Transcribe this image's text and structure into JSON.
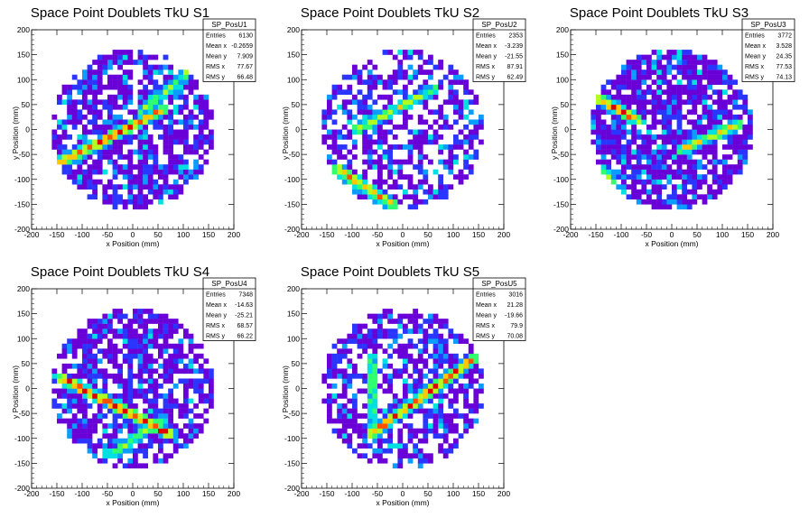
{
  "chart_data": [
    {
      "type": "heatmap",
      "title": "Space Point Doublets TkU S1",
      "xlabel": "x Position (mm)",
      "ylabel": "y Position (mm)",
      "xlim": [
        -200,
        200
      ],
      "ylim": [
        -200,
        200
      ],
      "ticks": [
        "-200",
        "-150",
        "-100",
        "-50",
        "0",
        "50",
        "100",
        "150",
        "200"
      ],
      "grid": false,
      "detector_radius": 160,
      "tracks": [
        {
          "from": [
            -150,
            -70
          ],
          "to": [
            60,
            40
          ],
          "intensity": 0.95
        },
        {
          "from": [
            20,
            40
          ],
          "to": [
            140,
            140
          ],
          "intensity": 0.5
        }
      ],
      "stats": {
        "name": "SP_PosU1",
        "rows": [
          {
            "label": "Entries",
            "value": "6130"
          },
          {
            "label": "Mean x",
            "value": "-0.2659"
          },
          {
            "label": "Mean y",
            "value": "7.909"
          },
          {
            "label": "RMS x",
            "value": "77.67"
          },
          {
            "label": "RMS y",
            "value": "66.48"
          }
        ]
      }
    },
    {
      "type": "heatmap",
      "title": "Space Point Doublets TkU S2",
      "xlabel": "x Position (mm)",
      "ylabel": "y Position (mm)",
      "xlim": [
        -200,
        200
      ],
      "ylim": [
        -200,
        200
      ],
      "ticks": [
        "-200",
        "-150",
        "-100",
        "-50",
        "0",
        "50",
        "100",
        "150",
        "200"
      ],
      "grid": false,
      "detector_radius": 160,
      "tracks": [
        {
          "from": [
            -130,
            -80
          ],
          "to": [
            -20,
            -150
          ],
          "intensity": 0.8
        },
        {
          "from": [
            -90,
            0
          ],
          "to": [
            60,
            80
          ],
          "intensity": 0.55
        }
      ],
      "stats": {
        "name": "SP_PosU2",
        "rows": [
          {
            "label": "Entries",
            "value": "2353"
          },
          {
            "label": "Mean x",
            "value": "-3.239"
          },
          {
            "label": "Mean y",
            "value": "-21.55"
          },
          {
            "label": "RMS x",
            "value": "87.91"
          },
          {
            "label": "RMS y",
            "value": "62.49"
          }
        ]
      }
    },
    {
      "type": "heatmap",
      "title": "Space Point Doublets TkU S3",
      "xlabel": "x Position (mm)",
      "ylabel": "y Position (mm)",
      "xlim": [
        -200,
        200
      ],
      "ylim": [
        -200,
        200
      ],
      "ticks": [
        "-200",
        "-150",
        "-100",
        "-50",
        "0",
        "50",
        "100",
        "150",
        "200"
      ],
      "grid": false,
      "detector_radius": 160,
      "tracks": [
        {
          "from": [
            -140,
            60
          ],
          "to": [
            -70,
            20
          ],
          "intensity": 0.9
        },
        {
          "from": [
            20,
            -40
          ],
          "to": [
            130,
            10
          ],
          "intensity": 0.7
        },
        {
          "from": [
            -140,
            -80
          ],
          "to": [
            -110,
            -120
          ],
          "intensity": 0.6
        }
      ],
      "stats": {
        "name": "SP_PosU3",
        "rows": [
          {
            "label": "Entries",
            "value": "3772"
          },
          {
            "label": "Mean x",
            "value": "3.528"
          },
          {
            "label": "Mean y",
            "value": "24.35"
          },
          {
            "label": "RMS x",
            "value": "77.53"
          },
          {
            "label": "RMS y",
            "value": "74.13"
          }
        ]
      }
    },
    {
      "type": "heatmap",
      "title": "Space Point Doublets TkU S4",
      "xlabel": "x Position (mm)",
      "ylabel": "y Position (mm)",
      "xlim": [
        -200,
        200
      ],
      "ylim": [
        -200,
        200
      ],
      "ticks": [
        "-200",
        "-150",
        "-100",
        "-50",
        "0",
        "50",
        "100",
        "150",
        "200"
      ],
      "grid": false,
      "detector_radius": 160,
      "tracks": [
        {
          "from": [
            -140,
            20
          ],
          "to": [
            70,
            -90
          ],
          "intensity": 1.0
        },
        {
          "from": [
            -40,
            -130
          ],
          "to": [
            60,
            -60
          ],
          "intensity": 0.55
        }
      ],
      "stats": {
        "name": "SP_PosU4",
        "rows": [
          {
            "label": "Entries",
            "value": "7348"
          },
          {
            "label": "Mean x",
            "value": "-14.63"
          },
          {
            "label": "Mean y",
            "value": "-25.21"
          },
          {
            "label": "RMS x",
            "value": "68.57"
          },
          {
            "label": "RMS y",
            "value": "66.22"
          }
        ]
      }
    },
    {
      "type": "heatmap",
      "title": "Space Point Doublets TkU S5",
      "xlabel": "x Position (mm)",
      "ylabel": "y Position (mm)",
      "xlim": [
        -200,
        200
      ],
      "ylim": [
        -200,
        200
      ],
      "ticks": [
        "-200",
        "-150",
        "-100",
        "-50",
        "0",
        "50",
        "100",
        "150",
        "200"
      ],
      "grid": false,
      "detector_radius": 160,
      "tracks": [
        {
          "from": [
            -60,
            -90
          ],
          "to": [
            140,
            60
          ],
          "intensity": 0.95
        },
        {
          "from": [
            -60,
            60
          ],
          "to": [
            -60,
            -80
          ],
          "intensity": 0.5
        }
      ],
      "stats": {
        "name": "SP_PosU5",
        "rows": [
          {
            "label": "Entries",
            "value": "3016"
          },
          {
            "label": "Mean x",
            "value": "21.28"
          },
          {
            "label": "Mean y",
            "value": "-19.66"
          },
          {
            "label": "RMS x",
            "value": "79.9"
          },
          {
            "label": "RMS y",
            "value": "70.08"
          }
        ]
      }
    }
  ],
  "colors": {
    "palette": [
      "#6a00d8",
      "#2a35ff",
      "#0a9dff",
      "#00e0e0",
      "#30ff70",
      "#b0ff20",
      "#ffc800",
      "#ff5000",
      "#e00000"
    ],
    "axis": "#000000",
    "background": "#ffffff"
  }
}
